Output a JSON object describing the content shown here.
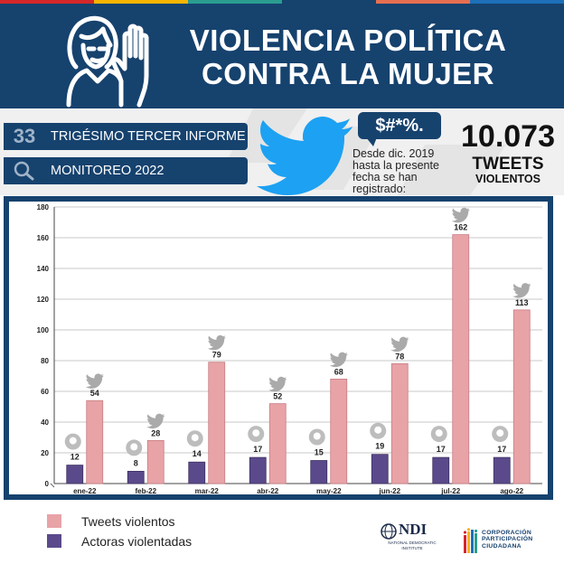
{
  "header": {
    "title_line1": "VIOLENCIA POLÍTICA",
    "title_line2": "CONTRA LA MUJER"
  },
  "info": {
    "report_number": "33",
    "report_label": "TRIGÉSIMO TERCER INFORME",
    "monitor_label": "MONITOREO 2022",
    "speech_bubble": "$#*%.",
    "since_text": "Desde dic. 2019 hasta la presente fecha se han registrado:",
    "total": "10.073",
    "total_unit": "TWEETS",
    "total_unit2": "VIOLENTOS"
  },
  "chart_data": {
    "type": "bar",
    "categories": [
      "ene-22",
      "feb-22",
      "mar-22",
      "abr-22",
      "may-22",
      "jun-22",
      "jul-22",
      "ago-22"
    ],
    "series": [
      {
        "name": "Actoras violentadas",
        "values": [
          12,
          8,
          14,
          17,
          15,
          19,
          17,
          17
        ],
        "color": "#5b4a8b"
      },
      {
        "name": "Tweets violentos",
        "values": [
          54,
          28,
          79,
          52,
          68,
          78,
          162,
          113
        ],
        "color": "#e8a3a7"
      }
    ],
    "ylim": [
      0,
      180
    ],
    "yticks": [
      0,
      20,
      40,
      60,
      80,
      100,
      120,
      140,
      160,
      180
    ],
    "grid": true
  },
  "legend": {
    "items": [
      {
        "label": "Tweets violentos",
        "color": "#e8a3a7"
      },
      {
        "label": "Actoras violentadas",
        "color": "#5b4a8b"
      }
    ]
  },
  "logos": {
    "ndi": "NDI",
    "ndi_sub": "NATIONAL DEMOCRATIC INSTITUTE",
    "cpc_line1": "CORPORACIÓN",
    "cpc_line2": "PARTICIPACIÓN",
    "cpc_line3": "CIUDADANA"
  },
  "colors": {
    "navy": "#16426e",
    "tweet_bar": "#e8a3a7",
    "actor_bar": "#5b4a8b",
    "twitter_blue": "#1da1f2"
  }
}
